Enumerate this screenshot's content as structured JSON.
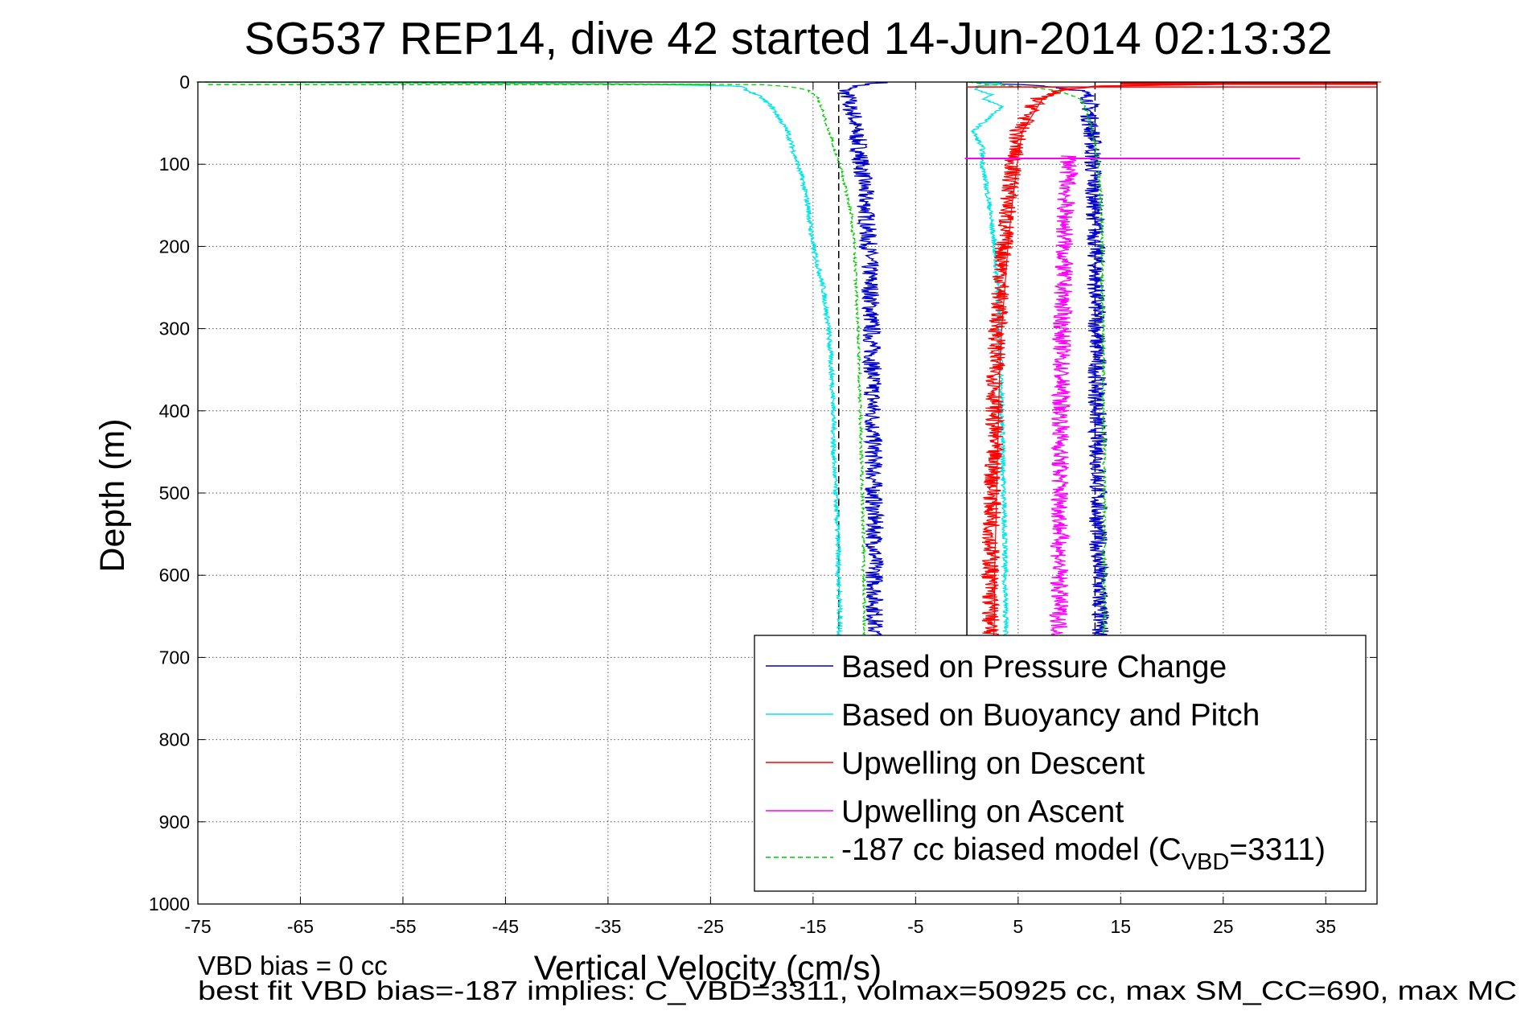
{
  "chart_data": {
    "type": "line",
    "title": "SG537 REP14, dive 42 started 14-Jun-2014 02:13:32",
    "xlabel": "Vertical Velocity (cm/s)",
    "ylabel": "Depth (m)",
    "xlim": [
      -75,
      40
    ],
    "ylim": [
      0,
      1000
    ],
    "y_reversed": true,
    "grid": true,
    "xticks": [
      -75,
      -65,
      -55,
      -45,
      -35,
      -25,
      -15,
      -5,
      5,
      15,
      25,
      35
    ],
    "yticks": [
      0,
      100,
      200,
      300,
      400,
      500,
      600,
      700,
      800,
      900,
      1000
    ],
    "legend_position": "bottom-right",
    "series": [
      {
        "name": "Based on Pressure Change",
        "color": "#0000cc",
        "style": "solid",
        "depth": [
          0,
          5,
          10,
          20,
          30,
          40,
          50,
          60,
          80,
          100,
          130,
          160,
          200,
          250,
          300,
          350,
          400,
          450,
          500,
          550,
          600,
          650,
          680
        ],
        "velocity": [
          -8,
          -11,
          -12,
          -11.5,
          -11.5,
          -11,
          -11,
          -10.8,
          -10.5,
          -10.3,
          -10,
          -9.8,
          -9.6,
          -9.4,
          -9.3,
          -9.2,
          -9.2,
          -9.1,
          -9.1,
          -9.0,
          -9.0,
          -9.0,
          -9.0
        ],
        "mirror_velocity": [
          1,
          8,
          11,
          12,
          12,
          12,
          12,
          12.2,
          12.3,
          12.3,
          12.4,
          12.5,
          12.6,
          12.6,
          12.7,
          12.7,
          12.7,
          12.8,
          12.8,
          12.8,
          12.9,
          13,
          13
        ]
      },
      {
        "name": "Based on Buoyancy and Pitch",
        "color": "#00e5e5",
        "style": "solid",
        "depth": [
          0,
          2,
          5,
          10,
          15,
          20,
          30,
          40,
          50,
          60,
          80,
          100,
          120,
          150,
          180,
          200,
          250,
          300,
          350,
          400,
          450,
          500,
          550,
          600,
          650,
          680
        ],
        "velocity": [
          -75,
          -35,
          -22,
          -21.5,
          -20.5,
          -20,
          -19,
          -18.5,
          -18,
          -17.5,
          -17,
          -16.5,
          -16,
          -15.5,
          -15.2,
          -15,
          -14,
          -13.5,
          -13.2,
          -13,
          -13,
          -12.8,
          -12.6,
          -12.5,
          -12.4,
          -12.4
        ],
        "mirror_velocity": [
          0,
          4,
          1,
          1,
          2.5,
          1.5,
          3.5,
          2.5,
          1.5,
          0.6,
          1.5,
          1.5,
          1.8,
          2.2,
          2.5,
          2.7,
          3.0,
          3.2,
          3.3,
          3.4,
          3.5,
          3.6,
          3.7,
          3.7,
          3.8,
          3.8
        ]
      },
      {
        "name": "Upwelling on Descent",
        "color": "#ff0000",
        "style": "solid",
        "depth": [
          0,
          5,
          10,
          20,
          40,
          60,
          100,
          150,
          200,
          250,
          300,
          350,
          400,
          450,
          500,
          550,
          600,
          650,
          680
        ],
        "velocity": [
          40,
          12,
          9,
          7,
          6,
          5,
          4.5,
          4,
          3.6,
          3.3,
          3,
          2.8,
          2.7,
          2.6,
          2.5,
          2.4,
          2.3,
          2.3,
          2.2
        ]
      },
      {
        "name": "Upwelling on Ascent",
        "color": "#ff00ff",
        "style": "solid",
        "depth": [
          90,
          100,
          150,
          200,
          250,
          300,
          350,
          400,
          450,
          500,
          550,
          600,
          650,
          680
        ],
        "velocity": [
          10,
          10,
          9.6,
          9.5,
          9.4,
          9.3,
          9.2,
          9.2,
          9.1,
          9.1,
          9.1,
          9.0,
          9.0,
          9.0
        ],
        "spike": {
          "depth": 93,
          "from": -0.2,
          "to": 32.5
        }
      },
      {
        "name": "-187 cc biased model (CVBD=3311)",
        "color": "#00cc00",
        "style": "dashed",
        "depth": [
          0,
          3,
          6,
          10,
          15,
          20,
          30,
          40,
          50,
          60,
          80,
          100,
          130,
          160,
          200,
          250,
          300,
          350,
          400,
          450,
          500,
          550,
          600,
          650,
          680
        ],
        "velocity": [
          -75,
          -20,
          -17,
          -15.5,
          -15,
          -14.5,
          -14.2,
          -14,
          -13.7,
          -13.4,
          -13,
          -12.4,
          -11.8,
          -11.3,
          -11,
          -10.8,
          -10.6,
          -10.5,
          -10.4,
          -10.3,
          -10.2,
          -10.1,
          -10.1,
          -10.0,
          -10.0
        ],
        "mirror_velocity": [
          0,
          2,
          6,
          8.5,
          10,
          11,
          11.5,
          11.8,
          12,
          12.2,
          12.5,
          12.8,
          13,
          13.1,
          13.2,
          13.2,
          13.3,
          13.3,
          13.3,
          13.4,
          13.4,
          13.4,
          13.4,
          13.4,
          13.4
        ]
      }
    ],
    "reference_lines": [
      {
        "type": "dashed",
        "x": -12.5,
        "color": "#000000"
      },
      {
        "type": "dashed",
        "x": 12.5,
        "color": "#000000"
      },
      {
        "type": "solid",
        "x": 0,
        "color": "#000000"
      }
    ]
  },
  "legend": {
    "entries": [
      {
        "label": "Based on Pressure Change",
        "color": "#0000cc",
        "dash": false
      },
      {
        "label": "Based on Buoyancy and Pitch",
        "color": "#00e5e5",
        "dash": false
      },
      {
        "label": "Upwelling on Descent",
        "color": "#ff0000",
        "dash": false
      },
      {
        "label": "Upwelling on Ascent",
        "color": "#ff00ff",
        "dash": false
      },
      {
        "label_main": "-187 cc biased model (C",
        "label_sub": "VBD",
        "label_tail": "=3311)",
        "color": "#00cc00",
        "dash": true
      }
    ]
  },
  "footer": {
    "line1": "VBD bias = 0 cc",
    "line2": "best fit VBD bias=-187 implies: C_VBD=3311, volmax=50925 cc, max SM_CC=690, max MC"
  }
}
